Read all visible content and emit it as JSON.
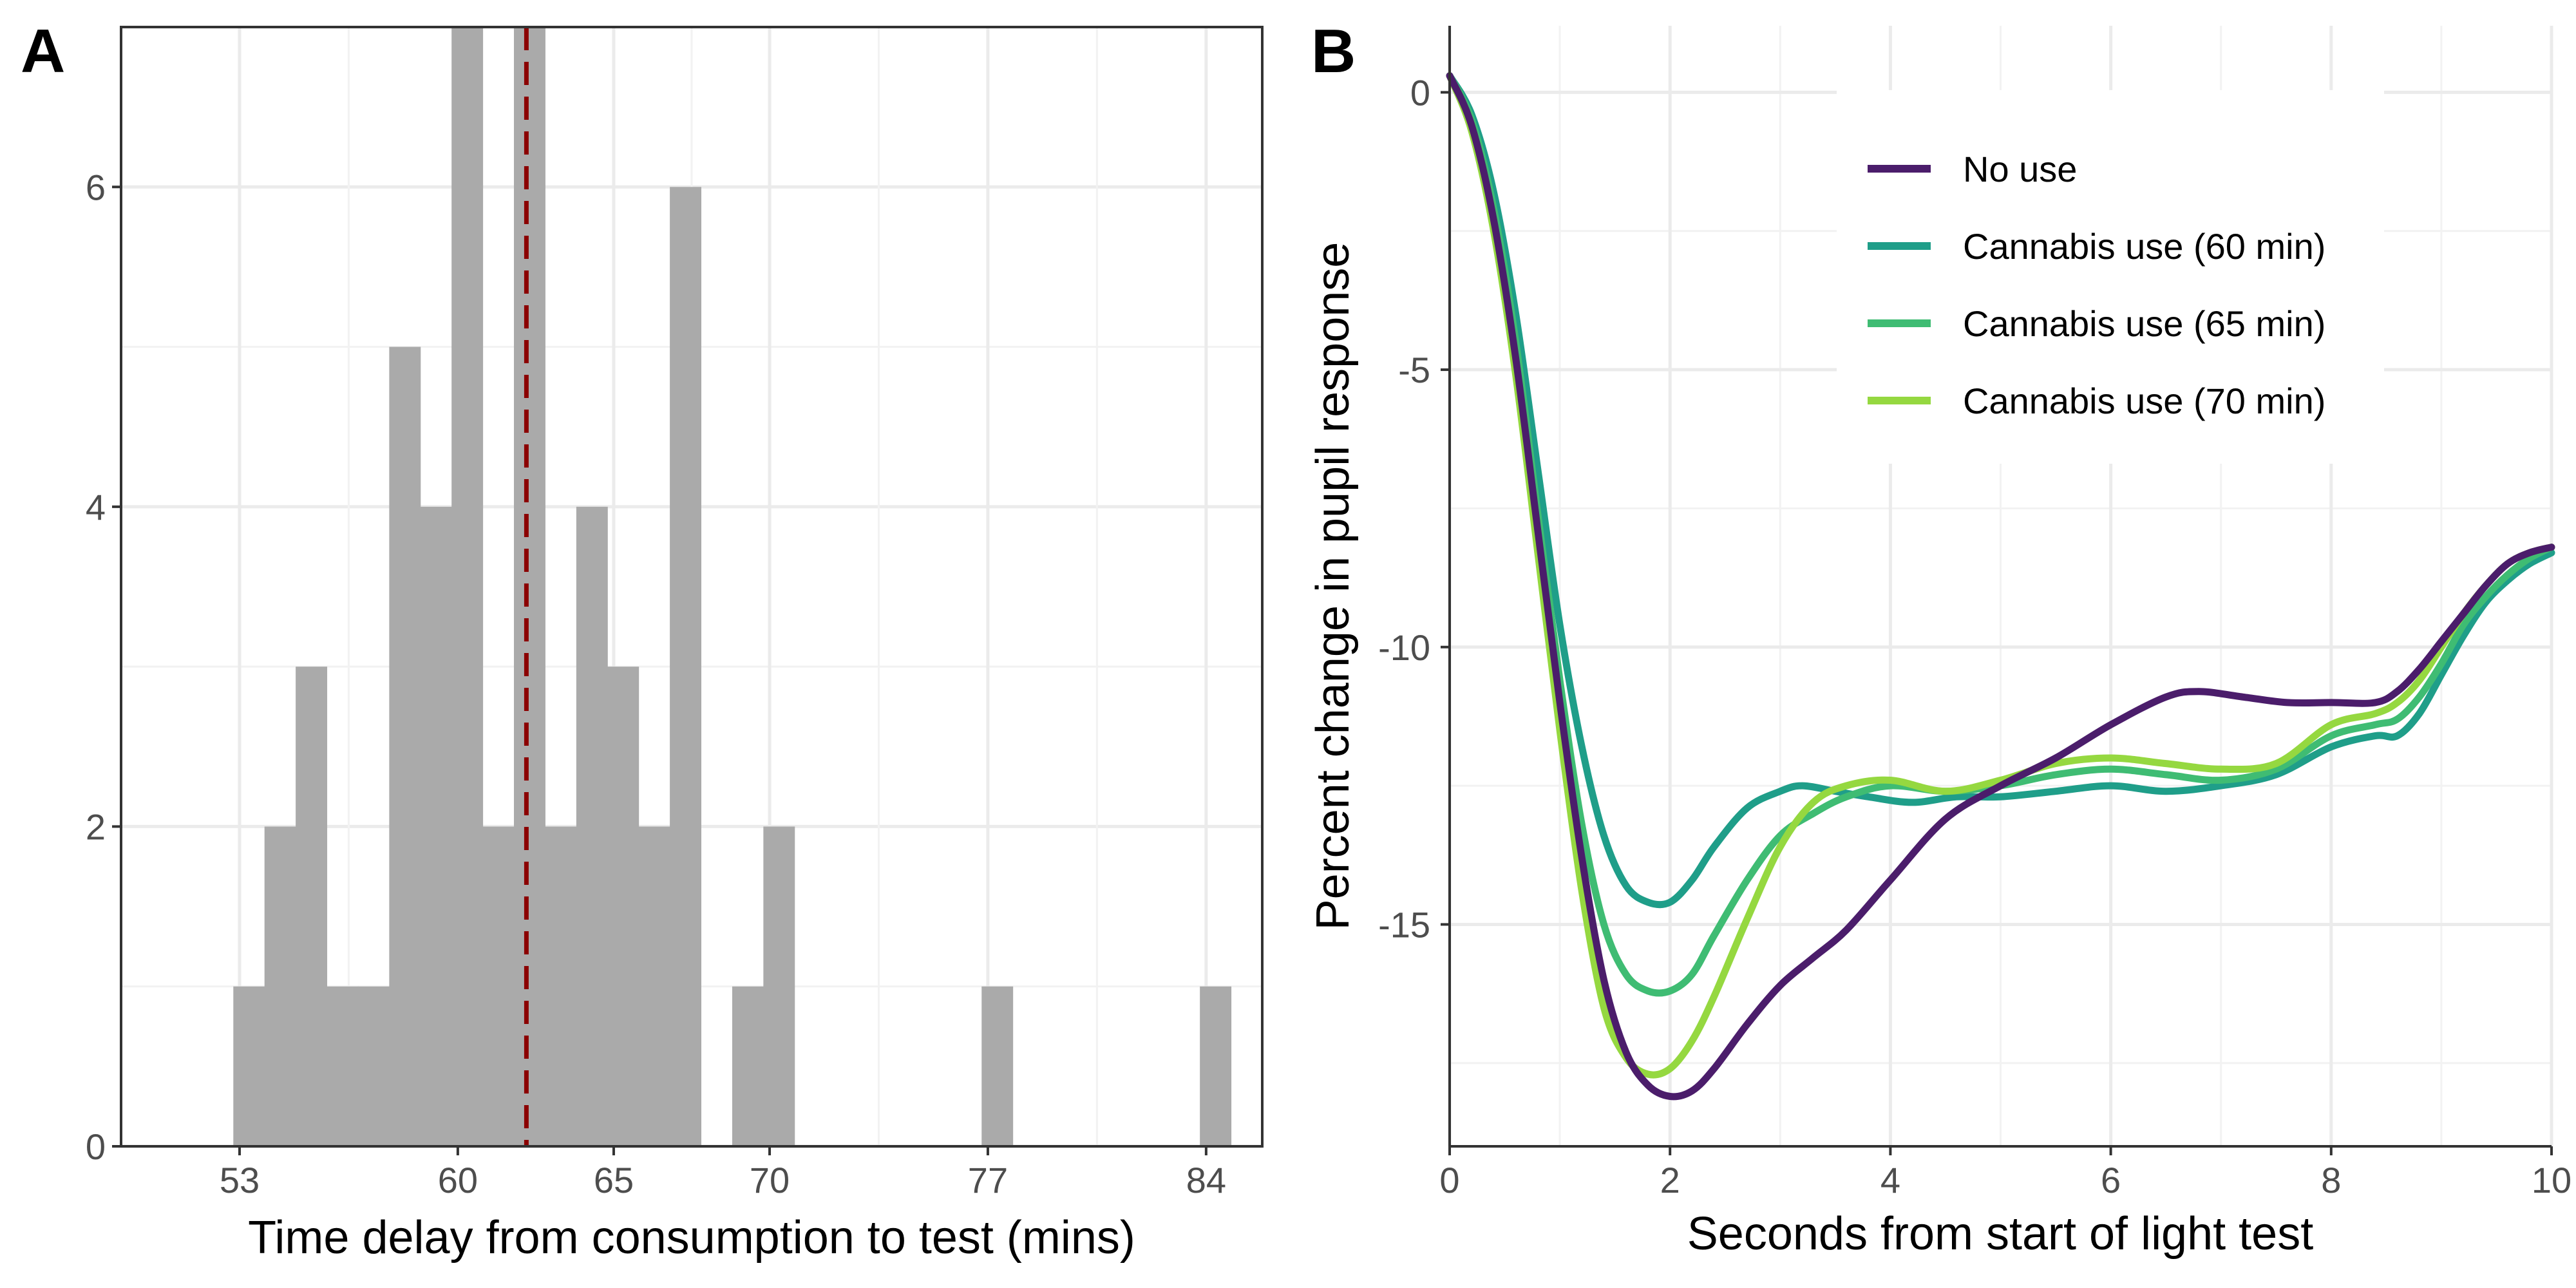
{
  "panels": {
    "a_letter": "A",
    "b_letter": "B"
  },
  "chart_data": [
    {
      "panel": "A",
      "type": "bar",
      "subtype": "histogram",
      "xlabel": "Time delay from consumption to test (mins)",
      "ylabel": "",
      "xlim": [
        49.2,
        85.8
      ],
      "ylim": [
        0,
        7
      ],
      "bin_width": 1,
      "x_ticks": [
        53,
        60,
        65,
        70,
        77,
        84
      ],
      "y_ticks": [
        0,
        2,
        4,
        6
      ],
      "bar_color": "#aaaaaa",
      "bins": [
        {
          "start": 52.8,
          "count": 1
        },
        {
          "start": 53.8,
          "count": 2
        },
        {
          "start": 54.8,
          "count": 3
        },
        {
          "start": 55.8,
          "count": 1
        },
        {
          "start": 56.8,
          "count": 1
        },
        {
          "start": 57.8,
          "count": 5
        },
        {
          "start": 58.8,
          "count": 4
        },
        {
          "start": 59.8,
          "count": 7
        },
        {
          "start": 60.8,
          "count": 2
        },
        {
          "start": 61.8,
          "count": 7
        },
        {
          "start": 62.8,
          "count": 2
        },
        {
          "start": 63.8,
          "count": 4
        },
        {
          "start": 64.8,
          "count": 3
        },
        {
          "start": 65.8,
          "count": 2
        },
        {
          "start": 66.8,
          "count": 6
        },
        {
          "start": 67.8,
          "count": 0
        },
        {
          "start": 68.8,
          "count": 1
        },
        {
          "start": 69.8,
          "count": 2
        },
        {
          "start": 76.8,
          "count": 1
        },
        {
          "start": 83.8,
          "count": 1
        }
      ],
      "reference_line": {
        "x": 62.2,
        "color": "#8b0000",
        "style": "dashed"
      }
    },
    {
      "panel": "B",
      "type": "line",
      "xlabel": "Seconds from start of light test",
      "ylabel": "Percent change in pupil response",
      "xlim": [
        0,
        10
      ],
      "ylim": [
        -19,
        1.2
      ],
      "x_ticks": [
        0,
        2,
        4,
        6,
        8,
        10
      ],
      "y_ticks": [
        0,
        -5,
        -10,
        -15
      ],
      "legend_position": "top-right",
      "series": [
        {
          "name": "No use",
          "color": "#4b1d6b",
          "x": [
            0,
            0.2,
            0.4,
            0.6,
            0.8,
            1.0,
            1.2,
            1.4,
            1.6,
            1.8,
            2.0,
            2.2,
            2.4,
            2.7,
            3.0,
            3.3,
            3.6,
            4.0,
            4.5,
            5.0,
            5.5,
            6.0,
            6.5,
            6.8,
            7.2,
            7.6,
            8.0,
            8.4,
            8.6,
            8.8,
            9.0,
            9.2,
            9.4,
            9.6,
            9.8,
            10.0
          ],
          "y": [
            0.3,
            -0.6,
            -2.3,
            -4.8,
            -7.9,
            -11.0,
            -13.8,
            -16.0,
            -17.3,
            -17.9,
            -18.1,
            -18.0,
            -17.6,
            -16.8,
            -16.1,
            -15.6,
            -15.1,
            -14.2,
            -13.1,
            -12.5,
            -12.0,
            -11.4,
            -10.9,
            -10.8,
            -10.9,
            -11.0,
            -11.0,
            -11.0,
            -10.8,
            -10.4,
            -9.9,
            -9.4,
            -8.9,
            -8.5,
            -8.3,
            -8.2
          ]
        },
        {
          "name": "Cannabis use (60 min)",
          "color": "#1f9e89",
          "x": [
            0,
            0.2,
            0.4,
            0.6,
            0.8,
            1.0,
            1.2,
            1.4,
            1.6,
            1.8,
            2.0,
            2.2,
            2.4,
            2.7,
            3.0,
            3.2,
            3.5,
            3.8,
            4.2,
            4.6,
            5.0,
            5.5,
            6.0,
            6.5,
            7.0,
            7.5,
            8.0,
            8.4,
            8.6,
            8.8,
            9.0,
            9.2,
            9.4,
            9.6,
            9.8,
            10.0
          ],
          "y": [
            0.3,
            -0.4,
            -1.8,
            -4.0,
            -6.8,
            -9.6,
            -11.8,
            -13.4,
            -14.3,
            -14.6,
            -14.6,
            -14.2,
            -13.6,
            -12.9,
            -12.6,
            -12.5,
            -12.6,
            -12.7,
            -12.8,
            -12.7,
            -12.7,
            -12.6,
            -12.5,
            -12.6,
            -12.5,
            -12.3,
            -11.8,
            -11.6,
            -11.6,
            -11.2,
            -10.5,
            -9.8,
            -9.2,
            -8.8,
            -8.5,
            -8.3
          ]
        },
        {
          "name": "Cannabis use (65 min)",
          "color": "#3fbc73",
          "x": [
            0,
            0.2,
            0.4,
            0.6,
            0.8,
            1.0,
            1.2,
            1.4,
            1.6,
            1.8,
            2.0,
            2.2,
            2.4,
            2.7,
            3.0,
            3.3,
            3.6,
            4.0,
            4.5,
            5.0,
            5.5,
            6.0,
            6.5,
            7.0,
            7.5,
            8.0,
            8.4,
            8.6,
            8.8,
            9.0,
            9.2,
            9.4,
            9.6,
            9.8,
            10.0
          ],
          "y": [
            0.3,
            -0.5,
            -2.1,
            -4.5,
            -7.6,
            -10.6,
            -13.2,
            -15.0,
            -15.9,
            -16.2,
            -16.2,
            -15.9,
            -15.2,
            -14.2,
            -13.4,
            -13.0,
            -12.7,
            -12.5,
            -12.6,
            -12.5,
            -12.3,
            -12.2,
            -12.3,
            -12.4,
            -12.2,
            -11.6,
            -11.4,
            -11.3,
            -10.9,
            -10.3,
            -9.6,
            -9.1,
            -8.7,
            -8.4,
            -8.2
          ]
        },
        {
          "name": "Cannabis use (70 min)",
          "color": "#95d840",
          "x": [
            0,
            0.2,
            0.4,
            0.6,
            0.8,
            1.0,
            1.2,
            1.4,
            1.6,
            1.8,
            2.0,
            2.2,
            2.4,
            2.7,
            3.0,
            3.3,
            3.6,
            4.0,
            4.5,
            5.0,
            5.5,
            6.0,
            6.5,
            7.0,
            7.5,
            8.0,
            8.4,
            8.6,
            8.8,
            9.0,
            9.2,
            9.4,
            9.6,
            9.8,
            10.0
          ],
          "y": [
            0.3,
            -0.7,
            -2.5,
            -5.1,
            -8.3,
            -11.5,
            -14.4,
            -16.5,
            -17.4,
            -17.7,
            -17.6,
            -17.1,
            -16.3,
            -14.9,
            -13.6,
            -12.8,
            -12.5,
            -12.4,
            -12.6,
            -12.4,
            -12.1,
            -12.0,
            -12.1,
            -12.2,
            -12.1,
            -11.4,
            -11.2,
            -11.0,
            -10.6,
            -10.0,
            -9.4,
            -8.9,
            -8.5,
            -8.3,
            -8.2
          ]
        }
      ]
    }
  ]
}
